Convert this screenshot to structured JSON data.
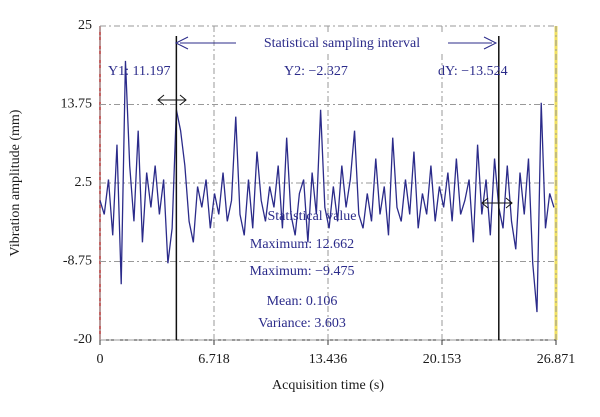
{
  "chart_data": {
    "type": "line",
    "xlabel": "Acquisition time (s)",
    "ylabel": "Vibration amplitude (mm)",
    "xlim": [
      0,
      26.871
    ],
    "xticks": [
      0,
      6.718,
      13.436,
      20.153,
      26.871
    ],
    "ylim": [
      -20,
      25
    ],
    "yticks": [
      -20,
      -8.75,
      2.5,
      13.75,
      25
    ],
    "grid": true,
    "cursors": [
      4.5,
      23.5
    ],
    "annotations": {
      "interval": "Statistical sampling interval",
      "y1": "Y1: 11.197",
      "y2": "Y2: −2.327",
      "dy": "dY: −13.524",
      "stat_title": "Statistical value",
      "max": "Maximum: 12.662",
      "min": "Maximum: −9.475",
      "mean": "Mean: 0.106",
      "variance": "Variance: 3.603"
    },
    "x": [
      0,
      0.25,
      0.5,
      0.75,
      1,
      1.25,
      1.5,
      1.75,
      2,
      2.25,
      2.5,
      2.75,
      3,
      3.25,
      3.5,
      3.75,
      4,
      4.25,
      4.5,
      4.75,
      5,
      5.25,
      5.5,
      5.75,
      6,
      6.25,
      6.5,
      6.75,
      7,
      7.25,
      7.5,
      7.75,
      8,
      8.25,
      8.5,
      8.75,
      9,
      9.25,
      9.5,
      9.75,
      10,
      10.25,
      10.5,
      10.75,
      11,
      11.25,
      11.5,
      11.75,
      12,
      12.25,
      12.5,
      12.75,
      13,
      13.25,
      13.5,
      13.75,
      14,
      14.25,
      14.5,
      14.75,
      15,
      15.25,
      15.5,
      15.75,
      16,
      16.25,
      16.5,
      16.75,
      17,
      17.25,
      17.5,
      17.75,
      18,
      18.25,
      18.5,
      18.75,
      19,
      19.25,
      19.5,
      19.75,
      20,
      20.25,
      20.5,
      20.75,
      21,
      21.25,
      21.5,
      21.75,
      22,
      22.25,
      22.5,
      22.75,
      23,
      23.25,
      23.5,
      23.75,
      24,
      24.25,
      24.5,
      24.75,
      25,
      25.25,
      25.5,
      25.75,
      26,
      26.25,
      26.5,
      26.75
    ],
    "series": [
      {
        "name": "vibration",
        "color": "#2b2b8a",
        "values": [
          0,
          -2,
          3,
          -5,
          8,
          -12,
          20,
          5,
          -3,
          10,
          -6,
          4,
          -1,
          5,
          -2,
          3,
          -9,
          -4,
          13,
          10,
          5,
          -3,
          -6,
          2,
          -1,
          3,
          -4,
          1,
          -2,
          4,
          -3,
          0,
          12,
          -2,
          -5,
          3,
          -4,
          7,
          0,
          -3,
          2,
          -1,
          5,
          -4,
          9,
          -2,
          -5,
          1,
          3,
          -6,
          4,
          -2,
          13,
          -1,
          -4,
          2,
          -3,
          5,
          -1,
          3,
          10,
          -2,
          -4,
          1,
          -3,
          6,
          -2,
          2,
          -5,
          9,
          -1,
          -3,
          3,
          -2,
          7,
          -4,
          1,
          -2,
          5,
          -3,
          2,
          -1,
          4,
          -3,
          6,
          -2,
          0,
          3,
          -6,
          8,
          -2,
          3,
          -5,
          6,
          -1,
          -4,
          5,
          -3,
          -7,
          4,
          -2,
          6,
          -9,
          -16,
          14,
          -4,
          1,
          -1
        ]
      }
    ]
  }
}
